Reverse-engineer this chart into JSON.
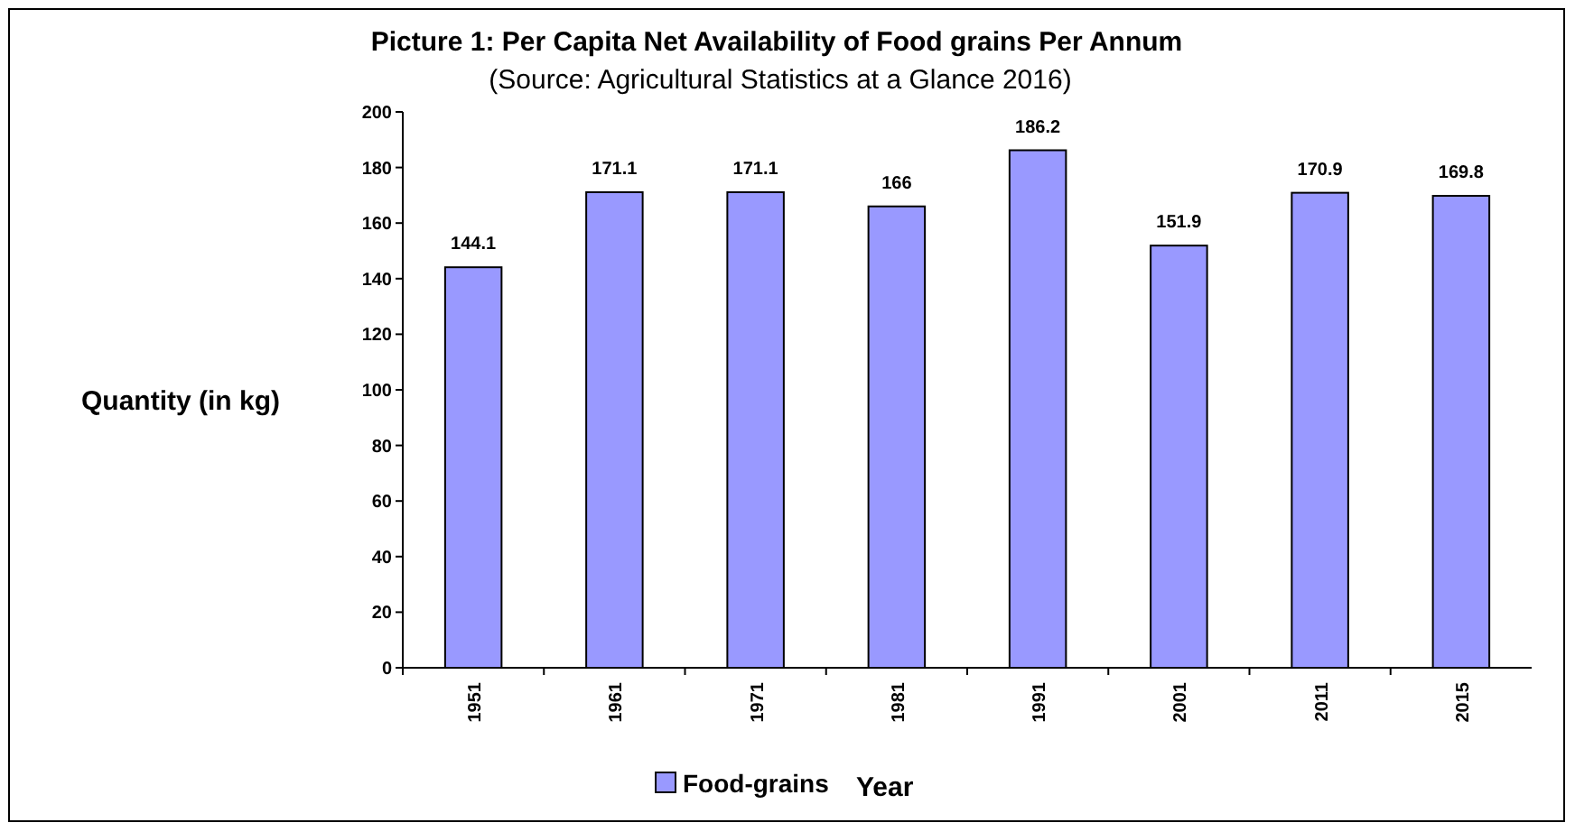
{
  "chart_data": {
    "type": "bar",
    "title": "Picture 1: Per Capita Net Availability of Food grains Per Annum",
    "subtitle": "(Source: Agricultural Statistics at a Glance 2016)",
    "xlabel": "Year",
    "ylabel": "Quantity (in kg)",
    "categories": [
      "1951",
      "1961",
      "1971",
      "1981",
      "1991",
      "2001",
      "2011",
      "2015"
    ],
    "series": [
      {
        "name": "Food-grains",
        "color": "#9999ff",
        "values": [
          144.1,
          171.1,
          171.1,
          166,
          186.2,
          151.9,
          170.9,
          169.8
        ]
      }
    ],
    "ylim": [
      0,
      200
    ],
    "yticks": [
      0,
      20,
      40,
      60,
      80,
      100,
      120,
      140,
      160,
      180,
      200
    ],
    "data_labels": true,
    "legend": "bottom",
    "grid": false
  }
}
